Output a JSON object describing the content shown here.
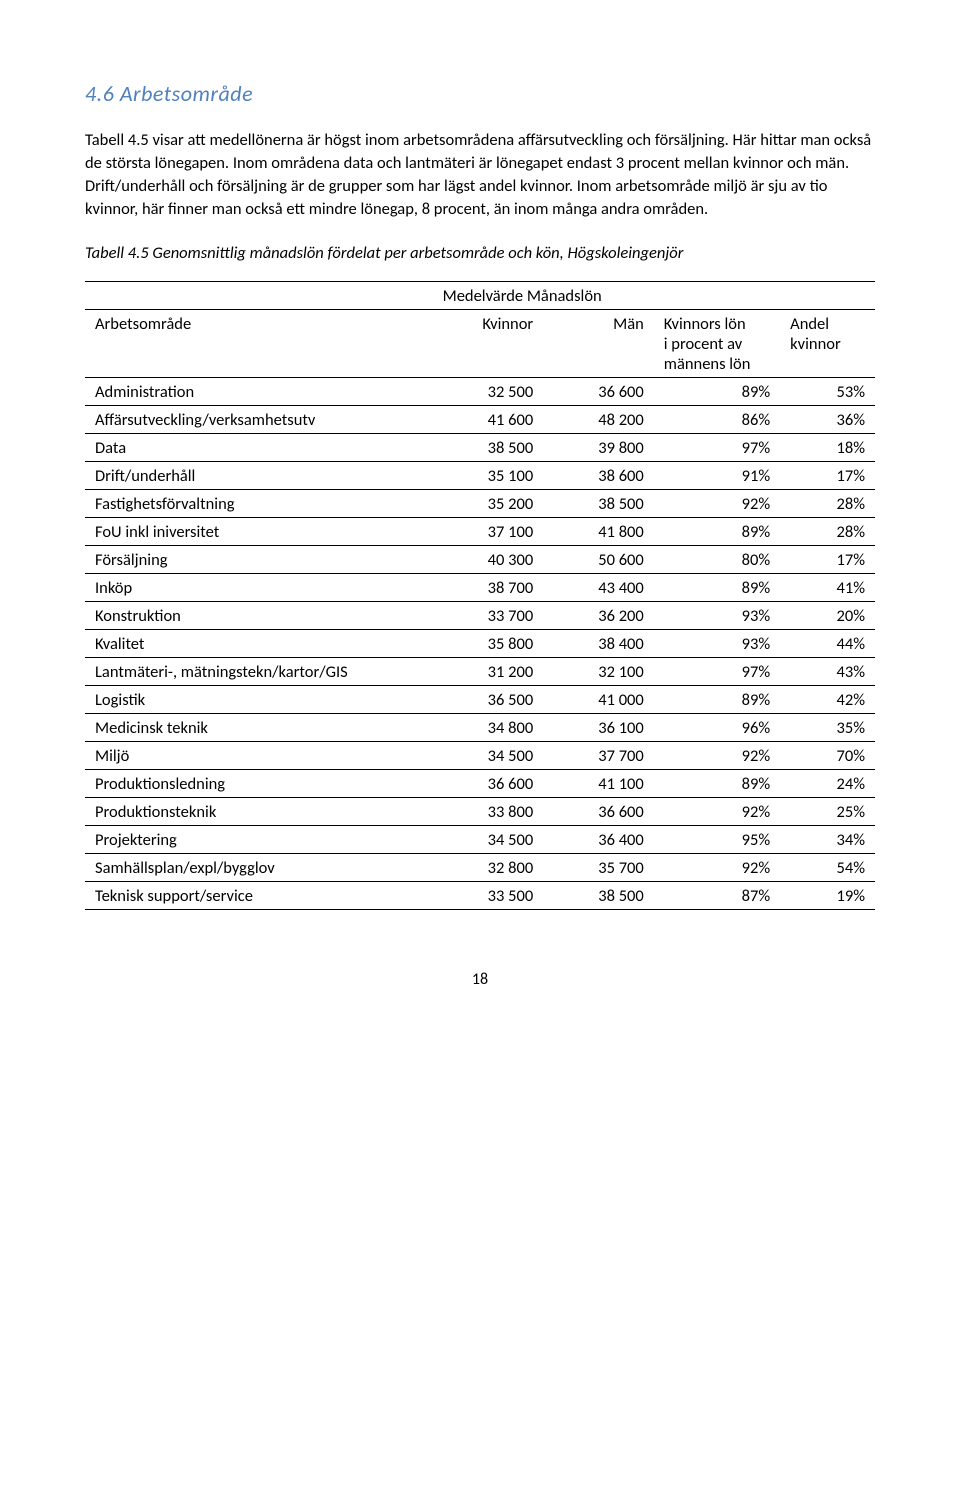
{
  "heading": "4.6 Arbetsområde",
  "para1": "Tabell 4.5 visar att medellönerna är högst inom arbetsområdena affärsutveckling och försäljning. Här hittar man också de största lönegapen. Inom områdena data och lantmäteri är lönegapet endast 3 procent mellan kvinnor och män. Drift/underhåll och försäljning är de grupper som har lägst andel kvinnor. Inom arbetsområde miljö är sju av tio kvinnor, här finner man också ett mindre lönegap, 8 procent, än inom många andra områden.",
  "tableCaption": "Tabell 4.5 Genomsnittlig månadslön fördelat per arbetsområde och kön, Högskoleingenjör",
  "headers": {
    "medelvarde": "Medelvärde Månadslön",
    "arbetsomrade": "Arbetsområde",
    "kvinnor": "Kvinnor",
    "man": "Män",
    "kvinnorsLon1": "Kvinnors lön",
    "kvinnorsLon2": "i procent av",
    "kvinnorsLon3": "männens lön",
    "andel1": "Andel",
    "andel2": "kvinnor"
  },
  "rows": [
    {
      "label": "Administration",
      "kvinnor": "32 500",
      "man": "36 600",
      "pct": "89%",
      "andel": "53%"
    },
    {
      "label": "Affärsutveckling/verksamhetsutv",
      "kvinnor": "41 600",
      "man": "48 200",
      "pct": "86%",
      "andel": "36%"
    },
    {
      "label": "Data",
      "kvinnor": "38 500",
      "man": "39 800",
      "pct": "97%",
      "andel": "18%"
    },
    {
      "label": "Drift/underhåll",
      "kvinnor": "35 100",
      "man": "38 600",
      "pct": "91%",
      "andel": "17%"
    },
    {
      "label": "Fastighetsförvaltning",
      "kvinnor": "35 200",
      "man": "38 500",
      "pct": "92%",
      "andel": "28%"
    },
    {
      "label": "FoU inkl iniversitet",
      "kvinnor": "37 100",
      "man": "41 800",
      "pct": "89%",
      "andel": "28%"
    },
    {
      "label": "Försäljning",
      "kvinnor": "40 300",
      "man": "50 600",
      "pct": "80%",
      "andel": "17%"
    },
    {
      "label": "Inköp",
      "kvinnor": "38 700",
      "man": "43 400",
      "pct": "89%",
      "andel": "41%"
    },
    {
      "label": "Konstruktion",
      "kvinnor": "33 700",
      "man": "36 200",
      "pct": "93%",
      "andel": "20%"
    },
    {
      "label": "Kvalitet",
      "kvinnor": "35 800",
      "man": "38 400",
      "pct": "93%",
      "andel": "44%"
    },
    {
      "label": "Lantmäteri-, mätningstekn/kartor/GIS",
      "kvinnor": "31 200",
      "man": "32 100",
      "pct": "97%",
      "andel": "43%"
    },
    {
      "label": "Logistik",
      "kvinnor": "36 500",
      "man": "41 000",
      "pct": "89%",
      "andel": "42%"
    },
    {
      "label": "Medicinsk teknik",
      "kvinnor": "34 800",
      "man": "36 100",
      "pct": "96%",
      "andel": "35%"
    },
    {
      "label": "Miljö",
      "kvinnor": "34 500",
      "man": "37 700",
      "pct": "92%",
      "andel": "70%"
    },
    {
      "label": "Produktionsledning",
      "kvinnor": "36 600",
      "man": "41 100",
      "pct": "89%",
      "andel": "24%"
    },
    {
      "label": "Produktionsteknik",
      "kvinnor": "33 800",
      "man": "36 600",
      "pct": "92%",
      "andel": "25%"
    },
    {
      "label": "Projektering",
      "kvinnor": "34 500",
      "man": "36 400",
      "pct": "95%",
      "andel": "34%"
    },
    {
      "label": "Samhällsplan/expl/bygglov",
      "kvinnor": "32 800",
      "man": "35 700",
      "pct": "92%",
      "andel": "54%"
    },
    {
      "label": "Teknisk support/service",
      "kvinnor": "33 500",
      "man": "38 500",
      "pct": "87%",
      "andel": "19%"
    }
  ],
  "pageNumber": "18"
}
